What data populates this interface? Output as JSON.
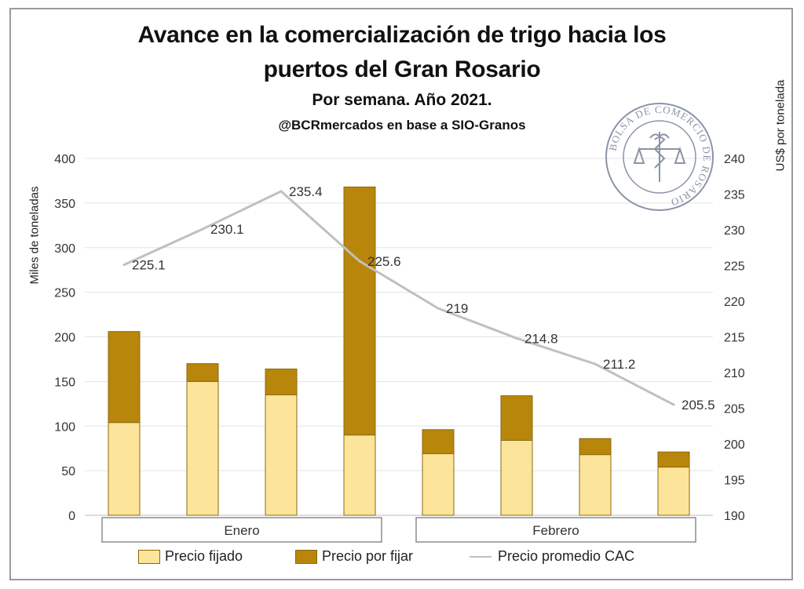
{
  "title": {
    "line1": "Avance en la comercialización de trigo hacia los",
    "line2": "puertos del Gran Rosario",
    "subtitle": "Por semana. Año 2021.",
    "source": "@BCRmercados en base a SIO-Granos"
  },
  "seal": {
    "text": "BOLSA DE COMERCIO DE ROSARIO",
    "icon": "caduceus-scales-icon"
  },
  "chart_data": {
    "type": "bar",
    "stacked": true,
    "groups": [
      {
        "label": "Enero",
        "bars": 4
      },
      {
        "label": "Febrero",
        "bars": 4
      }
    ],
    "ylabel": "Miles de toneladas",
    "ylim": [
      0,
      400
    ],
    "yticks": [
      "0",
      "50",
      "100",
      "150",
      "200",
      "250",
      "300",
      "350",
      "400"
    ],
    "y2label": "US$ por tonelada",
    "y2lim": [
      190,
      240
    ],
    "y2ticks": [
      "190",
      "195",
      "200",
      "205",
      "210",
      "215",
      "220",
      "225",
      "230",
      "235",
      "240"
    ],
    "grid": true,
    "legend_position": "bottom",
    "series": [
      {
        "name": "Precio fijado",
        "color": "#fce49a",
        "values": [
          104,
          150,
          135,
          90,
          69,
          84,
          68,
          54
        ]
      },
      {
        "name": "Precio por fijar",
        "color": "#b8860b",
        "values": [
          102,
          20,
          29,
          278,
          27,
          50,
          18,
          17
        ]
      }
    ],
    "line_series": {
      "name": "Precio promedio CAC",
      "color": "#c0c0c0",
      "values": [
        225.1,
        230.1,
        235.4,
        225.6,
        219,
        214.8,
        211.2,
        205.5
      ],
      "labels": [
        "225.1",
        "230.1",
        "235.4",
        "225.6",
        "219",
        "214.8",
        "211.2",
        "205.5"
      ]
    }
  }
}
